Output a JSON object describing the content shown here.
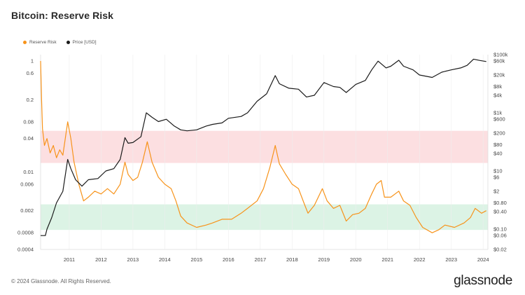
{
  "header": {
    "title": "Bitcoin: Reserve Risk"
  },
  "footer": {
    "copyright": "© 2024 Glassnode. All Rights Reserved.",
    "brand": "glassnode"
  },
  "colors": {
    "reserve_risk": "#f7931a",
    "price": "#1a1a1a",
    "red_band": "#fbd9dc",
    "green_band": "#d6f1e1",
    "grid": "#eeeeee",
    "axis_line": "#dddddd"
  },
  "chart_data": {
    "type": "line",
    "title": "Bitcoin: Reserve Risk",
    "legend": [
      "Reserve Risk",
      "Price [USD]"
    ],
    "legend_position": "top-left",
    "x_ticks": [
      "2011",
      "2012",
      "2013",
      "2014",
      "2015",
      "2016",
      "2017",
      "2018",
      "2019",
      "2020",
      "2021",
      "2022",
      "2023",
      "2024"
    ],
    "x_range": [
      2010.6,
      2024.65
    ],
    "left_axis": {
      "scale": "log",
      "range": [
        0.0004,
        1.3
      ],
      "ticks": [
        1,
        0.6,
        0.2,
        0.08,
        0.04,
        0.01,
        0.006,
        0.002,
        0.0008,
        0.0004
      ],
      "tick_labels": [
        "1",
        "0.6",
        "0.2",
        "0.08",
        "0.04",
        "0.01",
        "0.006",
        "0.002",
        "0.0008",
        "0.0004"
      ]
    },
    "right_axis": {
      "scale": "log",
      "range": [
        0.02,
        100000
      ],
      "ticks": [
        100000,
        60000,
        20000,
        8000,
        4000,
        1000,
        600,
        200,
        80,
        40,
        10,
        6,
        2,
        0.8,
        0.4,
        0.1,
        0.06,
        0.02
      ],
      "tick_labels": [
        "$100k",
        "$60k",
        "$20k",
        "$8k",
        "$4k",
        "$1k",
        "$600",
        "$200",
        "$80",
        "$40",
        "$10",
        "$6",
        "$2",
        "$0.80",
        "$0.40",
        "$0.10",
        "$0.06",
        "$0.02"
      ]
    },
    "bands": [
      {
        "name": "high-risk",
        "from": 0.0145,
        "to": 0.055
      },
      {
        "name": "low-risk",
        "from": 0.0009,
        "to": 0.0026
      }
    ],
    "series": [
      {
        "name": "Reserve Risk",
        "axis": "left",
        "points": [
          [
            2010.6,
            1.0
          ],
          [
            2010.63,
            0.2
          ],
          [
            2010.66,
            0.06
          ],
          [
            2010.72,
            0.03
          ],
          [
            2010.8,
            0.04
          ],
          [
            2010.9,
            0.022
          ],
          [
            2011.0,
            0.03
          ],
          [
            2011.1,
            0.018
          ],
          [
            2011.2,
            0.025
          ],
          [
            2011.3,
            0.02
          ],
          [
            2011.45,
            0.08
          ],
          [
            2011.55,
            0.04
          ],
          [
            2011.65,
            0.015
          ],
          [
            2011.8,
            0.006
          ],
          [
            2011.95,
            0.003
          ],
          [
            2012.1,
            0.0035
          ],
          [
            2012.3,
            0.0045
          ],
          [
            2012.5,
            0.004
          ],
          [
            2012.7,
            0.005
          ],
          [
            2012.9,
            0.004
          ],
          [
            2013.1,
            0.006
          ],
          [
            2013.25,
            0.015
          ],
          [
            2013.35,
            0.009
          ],
          [
            2013.5,
            0.007
          ],
          [
            2013.65,
            0.008
          ],
          [
            2013.8,
            0.015
          ],
          [
            2013.95,
            0.035
          ],
          [
            2014.1,
            0.015
          ],
          [
            2014.3,
            0.008
          ],
          [
            2014.5,
            0.006
          ],
          [
            2014.7,
            0.005
          ],
          [
            2014.85,
            0.003
          ],
          [
            2015.0,
            0.0016
          ],
          [
            2015.2,
            0.0012
          ],
          [
            2015.5,
            0.001
          ],
          [
            2015.8,
            0.0011
          ],
          [
            2016.0,
            0.0012
          ],
          [
            2016.3,
            0.0014
          ],
          [
            2016.6,
            0.0014
          ],
          [
            2016.9,
            0.0018
          ],
          [
            2017.1,
            0.0022
          ],
          [
            2017.4,
            0.003
          ],
          [
            2017.6,
            0.005
          ],
          [
            2017.8,
            0.012
          ],
          [
            2017.97,
            0.03
          ],
          [
            2018.1,
            0.014
          ],
          [
            2018.3,
            0.009
          ],
          [
            2018.5,
            0.006
          ],
          [
            2018.7,
            0.005
          ],
          [
            2018.9,
            0.0025
          ],
          [
            2019.0,
            0.0018
          ],
          [
            2019.2,
            0.0025
          ],
          [
            2019.45,
            0.005
          ],
          [
            2019.6,
            0.003
          ],
          [
            2019.8,
            0.0022
          ],
          [
            2020.0,
            0.0025
          ],
          [
            2020.2,
            0.0013
          ],
          [
            2020.4,
            0.0017
          ],
          [
            2020.6,
            0.0018
          ],
          [
            2020.8,
            0.0022
          ],
          [
            2021.0,
            0.004
          ],
          [
            2021.15,
            0.006
          ],
          [
            2021.3,
            0.007
          ],
          [
            2021.4,
            0.0035
          ],
          [
            2021.6,
            0.0035
          ],
          [
            2021.85,
            0.0045
          ],
          [
            2022.0,
            0.003
          ],
          [
            2022.2,
            0.0025
          ],
          [
            2022.4,
            0.0015
          ],
          [
            2022.6,
            0.001
          ],
          [
            2022.9,
            0.0008
          ],
          [
            2023.1,
            0.0009
          ],
          [
            2023.3,
            0.0011
          ],
          [
            2023.6,
            0.001
          ],
          [
            2023.9,
            0.0012
          ],
          [
            2024.1,
            0.0015
          ],
          [
            2024.25,
            0.0022
          ],
          [
            2024.45,
            0.0018
          ],
          [
            2024.6,
            0.002
          ]
        ]
      },
      {
        "name": "Price [USD]",
        "axis": "right",
        "points": [
          [
            2010.6,
            0.06
          ],
          [
            2010.75,
            0.06
          ],
          [
            2010.8,
            0.1
          ],
          [
            2010.95,
            0.25
          ],
          [
            2011.1,
            0.8
          ],
          [
            2011.3,
            2
          ],
          [
            2011.45,
            25
          ],
          [
            2011.55,
            12
          ],
          [
            2011.7,
            5
          ],
          [
            2011.9,
            3
          ],
          [
            2012.1,
            5
          ],
          [
            2012.4,
            5.5
          ],
          [
            2012.65,
            10
          ],
          [
            2012.9,
            12
          ],
          [
            2013.1,
            25
          ],
          [
            2013.25,
            140
          ],
          [
            2013.35,
            90
          ],
          [
            2013.5,
            95
          ],
          [
            2013.75,
            150
          ],
          [
            2013.92,
            1000
          ],
          [
            2014.1,
            700
          ],
          [
            2014.3,
            500
          ],
          [
            2014.55,
            600
          ],
          [
            2014.8,
            350
          ],
          [
            2015.0,
            260
          ],
          [
            2015.2,
            240
          ],
          [
            2015.5,
            260
          ],
          [
            2015.8,
            350
          ],
          [
            2016.0,
            400
          ],
          [
            2016.3,
            450
          ],
          [
            2016.5,
            650
          ],
          [
            2016.9,
            750
          ],
          [
            2017.1,
            1000
          ],
          [
            2017.4,
            2500
          ],
          [
            2017.7,
            4500
          ],
          [
            2017.97,
            19000
          ],
          [
            2018.1,
            10000
          ],
          [
            2018.4,
            7000
          ],
          [
            2018.7,
            6500
          ],
          [
            2018.95,
            3500
          ],
          [
            2019.2,
            4000
          ],
          [
            2019.5,
            11000
          ],
          [
            2019.8,
            8000
          ],
          [
            2020.0,
            7500
          ],
          [
            2020.2,
            5000
          ],
          [
            2020.5,
            9500
          ],
          [
            2020.8,
            13000
          ],
          [
            2021.0,
            30000
          ],
          [
            2021.2,
            60000
          ],
          [
            2021.45,
            35000
          ],
          [
            2021.6,
            40000
          ],
          [
            2021.85,
            64000
          ],
          [
            2022.0,
            40000
          ],
          [
            2022.3,
            30000
          ],
          [
            2022.5,
            20000
          ],
          [
            2022.9,
            16500
          ],
          [
            2023.2,
            25000
          ],
          [
            2023.5,
            30000
          ],
          [
            2023.8,
            35000
          ],
          [
            2024.0,
            43000
          ],
          [
            2024.2,
            70000
          ],
          [
            2024.4,
            63000
          ],
          [
            2024.6,
            58000
          ]
        ]
      }
    ]
  }
}
